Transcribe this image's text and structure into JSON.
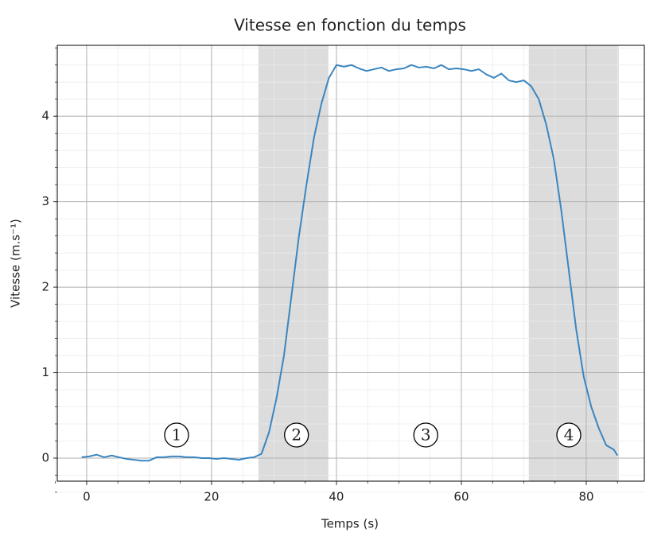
{
  "chart_data": {
    "type": "line",
    "title": "Vitesse en fonction du temps",
    "xlabel": "Temps (s)",
    "ylabel": "Vitesse (m.s⁻¹)",
    "x": [
      -0.8,
      0.4,
      1.6,
      2.8,
      4,
      5.2,
      6.4,
      7.6,
      8.8,
      10,
      11.2,
      12.4,
      13.6,
      14.8,
      16,
      17.2,
      18.4,
      19.6,
      20.8,
      22,
      23.2,
      24.4,
      25.6,
      26.8,
      28,
      29.2,
      30.4,
      31.6,
      32.8,
      34,
      35.2,
      36.4,
      37.6,
      38.8,
      40,
      41.2,
      42.4,
      43.6,
      44.8,
      46,
      47.2,
      48.4,
      49.6,
      50.8,
      52,
      53.2,
      54.4,
      55.6,
      56.8,
      58,
      59.2,
      60.4,
      61.6,
      62.8,
      64,
      65.2,
      66.4,
      67.6,
      68.8,
      70,
      71.2,
      72.4,
      73.6,
      74.8,
      76,
      77.2,
      78.4,
      79.6,
      80.8,
      82,
      83.2,
      84.4,
      85
    ],
    "series": [
      {
        "name": "Vitesse",
        "color": "#3b86c0",
        "values": [
          0.01,
          0.02,
          0.04,
          0.01,
          0.03,
          0.01,
          -0.01,
          -0.02,
          -0.03,
          -0.03,
          0.01,
          0.01,
          0.02,
          0.02,
          0.01,
          0.01,
          0.0,
          0.0,
          -0.01,
          0.0,
          -0.01,
          -0.02,
          0.0,
          0.01,
          0.05,
          0.3,
          0.7,
          1.2,
          1.9,
          2.6,
          3.2,
          3.75,
          4.15,
          4.45,
          4.6,
          4.58,
          4.6,
          4.56,
          4.53,
          4.55,
          4.57,
          4.53,
          4.55,
          4.56,
          4.6,
          4.57,
          4.58,
          4.56,
          4.6,
          4.55,
          4.56,
          4.55,
          4.53,
          4.55,
          4.49,
          4.45,
          4.5,
          4.42,
          4.4,
          4.42,
          4.35,
          4.2,
          3.9,
          3.5,
          2.9,
          2.2,
          1.5,
          0.95,
          0.6,
          0.35,
          0.15,
          0.1,
          0.03
        ]
      }
    ],
    "spans": [
      [
        27.5,
        38.7
      ],
      [
        70.8,
        85.2
      ]
    ],
    "span_color": "#dcdcdc",
    "annotations": [
      {
        "text": "1",
        "x": 14.4,
        "y": 0.27
      },
      {
        "text": "2",
        "x": 33.6,
        "y": 0.27
      },
      {
        "text": "3",
        "x": 54.3,
        "y": 0.27
      },
      {
        "text": "4",
        "x": 77.2,
        "y": 0.27
      }
    ],
    "xlim": [
      -4.7,
      89.3
    ],
    "ylim": [
      -0.27,
      4.83
    ],
    "xticks": [
      0,
      20,
      40,
      60,
      80
    ],
    "yticks": [
      0,
      1,
      2,
      3,
      4
    ],
    "grid": true,
    "minor_grid": true
  }
}
